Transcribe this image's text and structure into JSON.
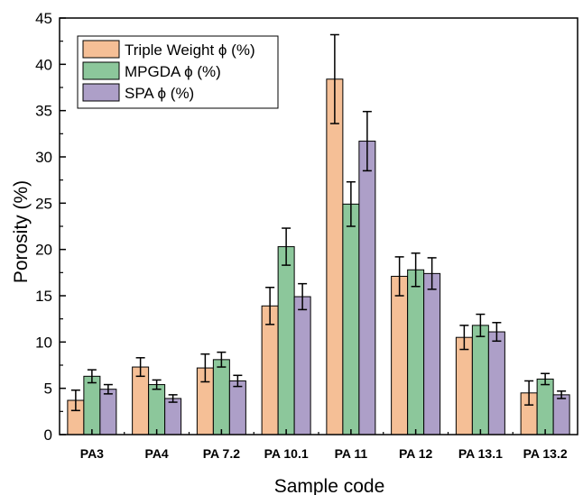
{
  "chart_data": {
    "type": "bar",
    "title": "",
    "xlabel": "Sample code",
    "ylabel": "Porosity (%)",
    "ylim": [
      0,
      45
    ],
    "yticks": [
      0,
      5,
      10,
      15,
      20,
      25,
      30,
      35,
      40,
      45
    ],
    "grid": false,
    "legend_position": "top-left",
    "categories": [
      "PA3",
      "PA4",
      "PA 7.2",
      "PA 10.1",
      "PA 11",
      "PA 12",
      "PA 13.1",
      "PA 13.2"
    ],
    "series": [
      {
        "name": "Triple Weight ϕ (%)",
        "color": "#f5bf96",
        "values": [
          3.7,
          7.3,
          7.2,
          13.9,
          38.4,
          17.1,
          10.5,
          4.5
        ],
        "errors": [
          1.1,
          1.0,
          1.5,
          2.0,
          4.8,
          2.1,
          1.3,
          1.3
        ]
      },
      {
        "name": "MPGDA ϕ (%)",
        "color": "#8cc79b",
        "values": [
          6.3,
          5.4,
          8.1,
          20.3,
          24.9,
          17.8,
          11.8,
          6.0
        ],
        "errors": [
          0.7,
          0.5,
          0.8,
          2.0,
          2.4,
          1.8,
          1.2,
          0.6
        ]
      },
      {
        "name": "SPA ϕ (%)",
        "color": "#ad9fc8",
        "values": [
          4.9,
          3.9,
          5.8,
          14.9,
          31.7,
          17.4,
          11.1,
          4.3
        ],
        "errors": [
          0.5,
          0.4,
          0.6,
          1.4,
          3.2,
          1.7,
          1.0,
          0.4
        ]
      }
    ]
  }
}
